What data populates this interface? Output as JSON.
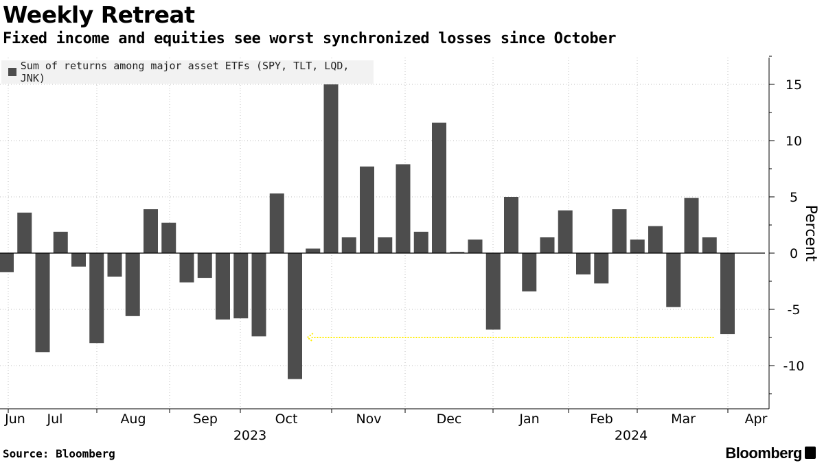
{
  "header": {
    "title": "Weekly Retreat",
    "subtitle": "Fixed income and equities see worst synchronized losses since October"
  },
  "footer": {
    "source": "Source: Bloomberg",
    "brand": "Bloomberg"
  },
  "chart_data": {
    "type": "bar",
    "series": [
      {
        "name": "Sum of returns among major asset ETFs (SPY, TLT, LQD, JNK)",
        "color": "#4d4d4d",
        "values": [
          -1.7,
          3.6,
          -8.8,
          1.9,
          -1.2,
          -8.0,
          -2.1,
          -5.6,
          3.9,
          2.7,
          -2.6,
          -2.2,
          -5.9,
          -5.8,
          -7.4,
          5.3,
          -11.2,
          0.4,
          15.0,
          1.4,
          7.7,
          1.4,
          7.9,
          1.9,
          11.6,
          0.1,
          1.2,
          -6.8,
          5.0,
          -3.4,
          1.4,
          3.8,
          -1.9,
          -2.7,
          3.9,
          1.2,
          2.4,
          -4.8,
          4.9,
          1.4,
          -7.2
        ]
      }
    ],
    "x_month_labels": [
      "Jun",
      "Jul",
      "Aug",
      "Sep",
      "Oct",
      "Nov",
      "Dec",
      "Jan",
      "Feb",
      "Mar",
      "Apr"
    ],
    "x_year_labels": [
      "2023",
      "2024"
    ],
    "y_ticks": [
      15,
      10,
      5,
      0,
      -5,
      -10
    ],
    "ylabel": "Percent",
    "ylim": [
      -13.5,
      17.5
    ],
    "y_axis_side": "right",
    "grid": true,
    "legend_position": "top-left",
    "annotation": {
      "type": "arrow",
      "color": "#ffee00",
      "from_bar_index": 40,
      "to_bar_index": 17,
      "y_value": -7.5
    }
  }
}
